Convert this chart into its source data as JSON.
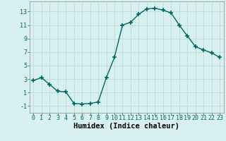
{
  "x": [
    0,
    1,
    2,
    3,
    4,
    5,
    6,
    7,
    8,
    9,
    10,
    11,
    12,
    13,
    14,
    15,
    16,
    17,
    18,
    19,
    20,
    21,
    22,
    23
  ],
  "y": [
    2.8,
    3.2,
    2.2,
    1.2,
    1.1,
    -0.6,
    -0.7,
    -0.6,
    -0.4,
    3.2,
    6.2,
    11.0,
    11.4,
    12.6,
    13.4,
    13.5,
    13.2,
    12.8,
    11.0,
    9.4,
    7.8,
    7.3,
    6.9,
    6.2
  ],
  "line_color": "#006666",
  "marker": "+",
  "marker_size": 4,
  "xlabel": "Humidex (Indice chaleur)",
  "xlim": [
    -0.5,
    23.5
  ],
  "ylim": [
    -2,
    14.5
  ],
  "yticks": [
    -1,
    1,
    3,
    5,
    7,
    9,
    11,
    13
  ],
  "xticks": [
    0,
    1,
    2,
    3,
    4,
    5,
    6,
    7,
    8,
    9,
    10,
    11,
    12,
    13,
    14,
    15,
    16,
    17,
    18,
    19,
    20,
    21,
    22,
    23
  ],
  "grid_color": "#c0dede",
  "bg_color": "#d8f0f0",
  "xlabel_fontsize": 7.5,
  "tick_fontsize": 6.0,
  "line_width": 1.0,
  "marker_color": "#006666"
}
